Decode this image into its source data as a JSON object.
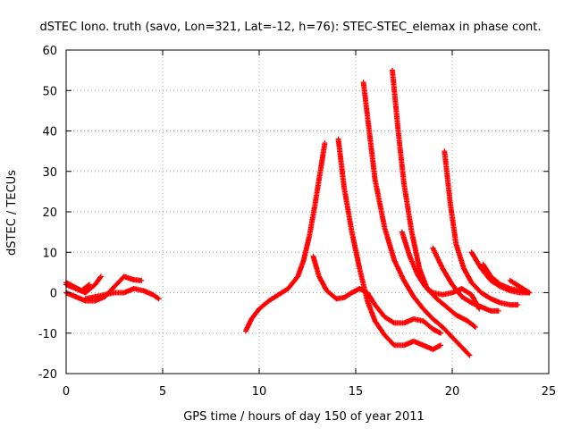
{
  "chart_data": {
    "type": "scatter",
    "title": "dSTEC Iono. truth (savo, Lon=321, Lat=-12, h=76): STEC-STEC_elemax in phase cont.",
    "xlabel": "GPS time / hours of day 150 of year 2011",
    "ylabel": "dSTEC  / TECUs",
    "xlim": [
      0,
      25
    ],
    "ylim": [
      -20,
      60
    ],
    "xticks": [
      0,
      5,
      10,
      15,
      20,
      25
    ],
    "yticks": [
      -20,
      -10,
      0,
      10,
      20,
      30,
      40,
      50,
      60
    ],
    "grid": true,
    "marker": "plus",
    "color": "#ff0000",
    "tracks": [
      {
        "name": "",
        "x": [
          0.0,
          0.5,
          1.0,
          1.5,
          1.8
        ],
        "y": [
          2.0,
          1.0,
          0.0,
          2.0,
          4.0
        ]
      },
      {
        "name": "",
        "x": [
          0.0,
          0.5,
          1.0,
          1.5,
          2.0,
          2.5,
          3.0,
          3.5,
          3.9
        ],
        "y": [
          0.0,
          -1.0,
          -2.0,
          -2.0,
          -1.0,
          1.5,
          4.0,
          3.2,
          3.0
        ]
      },
      {
        "name": "",
        "x": [
          0.0,
          0.4,
          0.8,
          1.2
        ],
        "y": [
          2.5,
          1.5,
          0.5,
          2.0
        ]
      },
      {
        "name": "",
        "x": [
          1.0,
          1.5,
          2.0,
          2.5,
          3.0,
          3.5,
          4.0,
          4.5,
          4.8
        ],
        "y": [
          -1.5,
          -1.0,
          -0.5,
          0.0,
          0.0,
          1.0,
          0.5,
          -0.5,
          -1.5
        ]
      },
      {
        "name": "",
        "x": [
          9.3,
          9.6,
          10.0,
          10.5,
          11.0,
          11.5,
          12.0,
          12.3,
          12.6,
          12.9,
          13.2,
          13.4
        ],
        "y": [
          -9.5,
          -6.5,
          -4.0,
          -2.0,
          -0.5,
          1.0,
          4.0,
          8.0,
          14.0,
          22.0,
          31.0,
          37.0
        ]
      },
      {
        "name": "",
        "x": [
          12.8,
          13.1,
          13.5,
          14.0,
          14.4,
          14.8,
          15.2,
          15.6,
          16.0,
          16.5,
          17.0,
          17.5,
          18.0,
          18.5,
          19.0,
          19.4
        ],
        "y": [
          9.0,
          4.0,
          0.5,
          -1.5,
          -1.2,
          0.0,
          1.0,
          0.0,
          -3.0,
          -6.0,
          -7.5,
          -7.5,
          -6.5,
          -7.0,
          -9.0,
          -10.0
        ]
      },
      {
        "name": "",
        "x": [
          14.1,
          14.4,
          14.8,
          15.2,
          15.6,
          16.0,
          16.5,
          17.0,
          17.5,
          18.0,
          18.5,
          19.0,
          19.4
        ],
        "y": [
          38.0,
          26.0,
          15.0,
          6.0,
          -2.0,
          -7.0,
          -10.5,
          -13.0,
          -13.0,
          -12.0,
          -13.0,
          -14.0,
          -13.0
        ]
      },
      {
        "name": "",
        "x": [
          15.4,
          15.7,
          16.0,
          16.5,
          17.0,
          17.5,
          18.0,
          18.5,
          19.0,
          19.5,
          20.0,
          20.5,
          20.9
        ],
        "y": [
          52.0,
          40.0,
          28.0,
          16.0,
          8.0,
          3.0,
          -1.0,
          -4.0,
          -6.5,
          -8.5,
          -11.0,
          -13.5,
          -15.5
        ]
      },
      {
        "name": "",
        "x": [
          16.9,
          17.2,
          17.5,
          17.9,
          18.3,
          18.7,
          19.2,
          19.7,
          20.2,
          20.8,
          21.2
        ],
        "y": [
          55.0,
          40.0,
          27.0,
          15.0,
          6.0,
          1.0,
          -1.5,
          -3.5,
          -5.5,
          -7.0,
          -8.5
        ]
      },
      {
        "name": "",
        "x": [
          17.4,
          17.8,
          18.2,
          18.6,
          19.0,
          19.5,
          20.0,
          20.5,
          21.0,
          21.4
        ],
        "y": [
          15.0,
          9.0,
          4.5,
          1.5,
          0.0,
          -0.5,
          0.0,
          1.0,
          -0.5,
          -4.0
        ]
      },
      {
        "name": "",
        "x": [
          19.0,
          19.5,
          20.0,
          20.5,
          21.0,
          21.5,
          22.0,
          22.4
        ],
        "y": [
          11.0,
          6.0,
          2.0,
          -1.0,
          -2.5,
          -3.5,
          -4.5,
          -4.5
        ]
      },
      {
        "name": "",
        "x": [
          19.6,
          19.9,
          20.2,
          20.6,
          21.0,
          21.5,
          22.0,
          22.5,
          23.0,
          23.4
        ],
        "y": [
          35.0,
          22.0,
          12.0,
          6.0,
          2.5,
          0.0,
          -1.5,
          -2.5,
          -3.0,
          -3.0
        ]
      },
      {
        "name": "",
        "x": [
          21.0,
          21.5,
          22.0,
          22.5,
          23.0,
          23.5,
          24.0
        ],
        "y": [
          10.0,
          6.0,
          3.0,
          1.5,
          0.5,
          0.0,
          0.0
        ]
      },
      {
        "name": "",
        "x": [
          21.6,
          22.0,
          22.5,
          23.0,
          23.5,
          24.0
        ],
        "y": [
          7.0,
          4.0,
          2.0,
          1.0,
          0.5,
          0.0
        ]
      },
      {
        "name": "",
        "x": [
          23.0,
          23.5,
          24.0
        ],
        "y": [
          3.0,
          1.5,
          0.0
        ]
      }
    ]
  }
}
